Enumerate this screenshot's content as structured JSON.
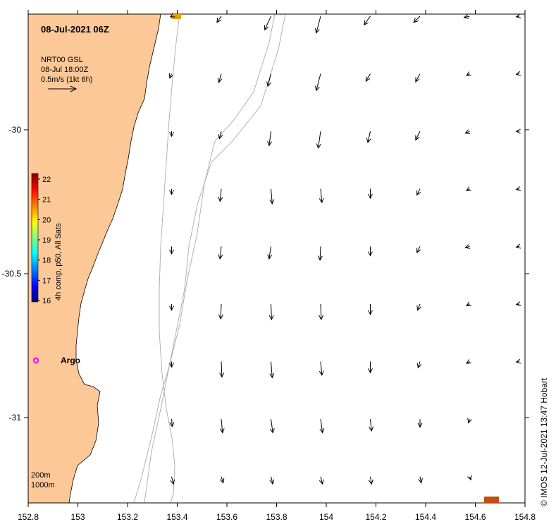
{
  "title": "08-Jul-2021 06Z",
  "vector_legend": {
    "line1": "NRT00 GSL",
    "line2": "08-Jul 18:00Z",
    "line3": "0.5m/s (1kt 6h)"
  },
  "colorbar": {
    "label": "4h comp, p50, All Sats",
    "ticks": [
      "16",
      "17",
      "18",
      "19",
      "20",
      "21",
      "22"
    ],
    "colors": [
      "#00007f",
      "#0000ff",
      "#007fff",
      "#00ffff",
      "#7fff7f",
      "#ffff00",
      "#ff7f00",
      "#ff0000",
      "#7f0000"
    ]
  },
  "x_axis": {
    "ticks": [
      "152.8",
      "153",
      "153.2",
      "153.4",
      "153.6",
      "153.8",
      "154",
      "154.2",
      "154.4",
      "154.6",
      "154.8"
    ]
  },
  "y_axis": {
    "ticks": [
      "-30",
      "-30.5",
      "-31"
    ]
  },
  "depth_legend": {
    "line1": "200m",
    "line2": "1000m"
  },
  "argo_label": "Argo",
  "credit": "© IMOS 12-Jul-2021 13:47 Hobart",
  "colors": {
    "land": "#fdc898",
    "marker": "#ff00ff",
    "chip": "#c05010"
  },
  "current_vectors": {
    "description": "Surface current arrows: u,v in m/s at lon/lat grid",
    "cols_lon": [
      153.4,
      153.6,
      153.8,
      154.0,
      154.2,
      154.4,
      154.6,
      154.8
    ],
    "rows_lat": [
      -29.62,
      -29.82,
      -30.02,
      -30.22,
      -30.42,
      -30.62,
      -30.82,
      -31.02,
      -31.22
    ],
    "u": [
      [
        -0.02,
        -0.07,
        -0.1,
        -0.07,
        -0.1,
        -0.1,
        -0.09,
        -0.05
      ],
      [
        -0.03,
        -0.04,
        -0.05,
        -0.07,
        -0.07,
        -0.07,
        -0.05,
        -0.05
      ],
      [
        0.0,
        -0.03,
        -0.03,
        -0.04,
        -0.04,
        -0.07,
        -0.07,
        -0.05
      ],
      [
        0.0,
        -0.02,
        0.02,
        0.02,
        0.0,
        -0.05,
        -0.05,
        -0.05
      ],
      [
        0.0,
        -0.02,
        -0.03,
        -0.01,
        0.0,
        -0.05,
        -0.07,
        -0.05
      ],
      [
        0.0,
        -0.01,
        0.01,
        0.01,
        0.0,
        -0.04,
        -0.05,
        -0.05
      ],
      [
        0.0,
        0.01,
        0.02,
        0.02,
        0.0,
        -0.03,
        -0.05,
        -0.05
      ],
      [
        0.01,
        0.02,
        0.03,
        0.03,
        0.02,
        0.0,
        -0.02,
        0.0
      ],
      [
        0.03,
        0.03,
        0.03,
        0.03,
        0.02,
        0.02,
        0.02,
        0.0
      ]
    ],
    "v": [
      [
        -0.01,
        -0.1,
        -0.22,
        -0.27,
        -0.14,
        -0.1,
        -0.02,
        -0.01
      ],
      [
        -0.07,
        -0.14,
        -0.2,
        -0.27,
        -0.12,
        -0.13,
        -0.03,
        -0.01
      ],
      [
        -0.08,
        -0.12,
        -0.23,
        -0.27,
        -0.18,
        -0.14,
        -0.03,
        0.0
      ],
      [
        -0.09,
        -0.2,
        -0.24,
        -0.22,
        -0.15,
        -0.1,
        -0.03,
        -0.01
      ],
      [
        -0.12,
        -0.2,
        -0.2,
        -0.22,
        -0.15,
        -0.1,
        -0.02,
        -0.01
      ],
      [
        -0.1,
        -0.24,
        -0.25,
        -0.25,
        -0.17,
        -0.1,
        -0.03,
        -0.01
      ],
      [
        -0.09,
        -0.25,
        -0.26,
        -0.22,
        -0.18,
        -0.1,
        -0.03,
        -0.01
      ],
      [
        -0.12,
        -0.22,
        -0.22,
        -0.22,
        -0.19,
        -0.13,
        -0.06,
        0.0
      ],
      [
        -0.12,
        -0.1,
        -0.12,
        -0.12,
        -0.12,
        -0.1,
        -0.05,
        0.0
      ]
    ]
  }
}
